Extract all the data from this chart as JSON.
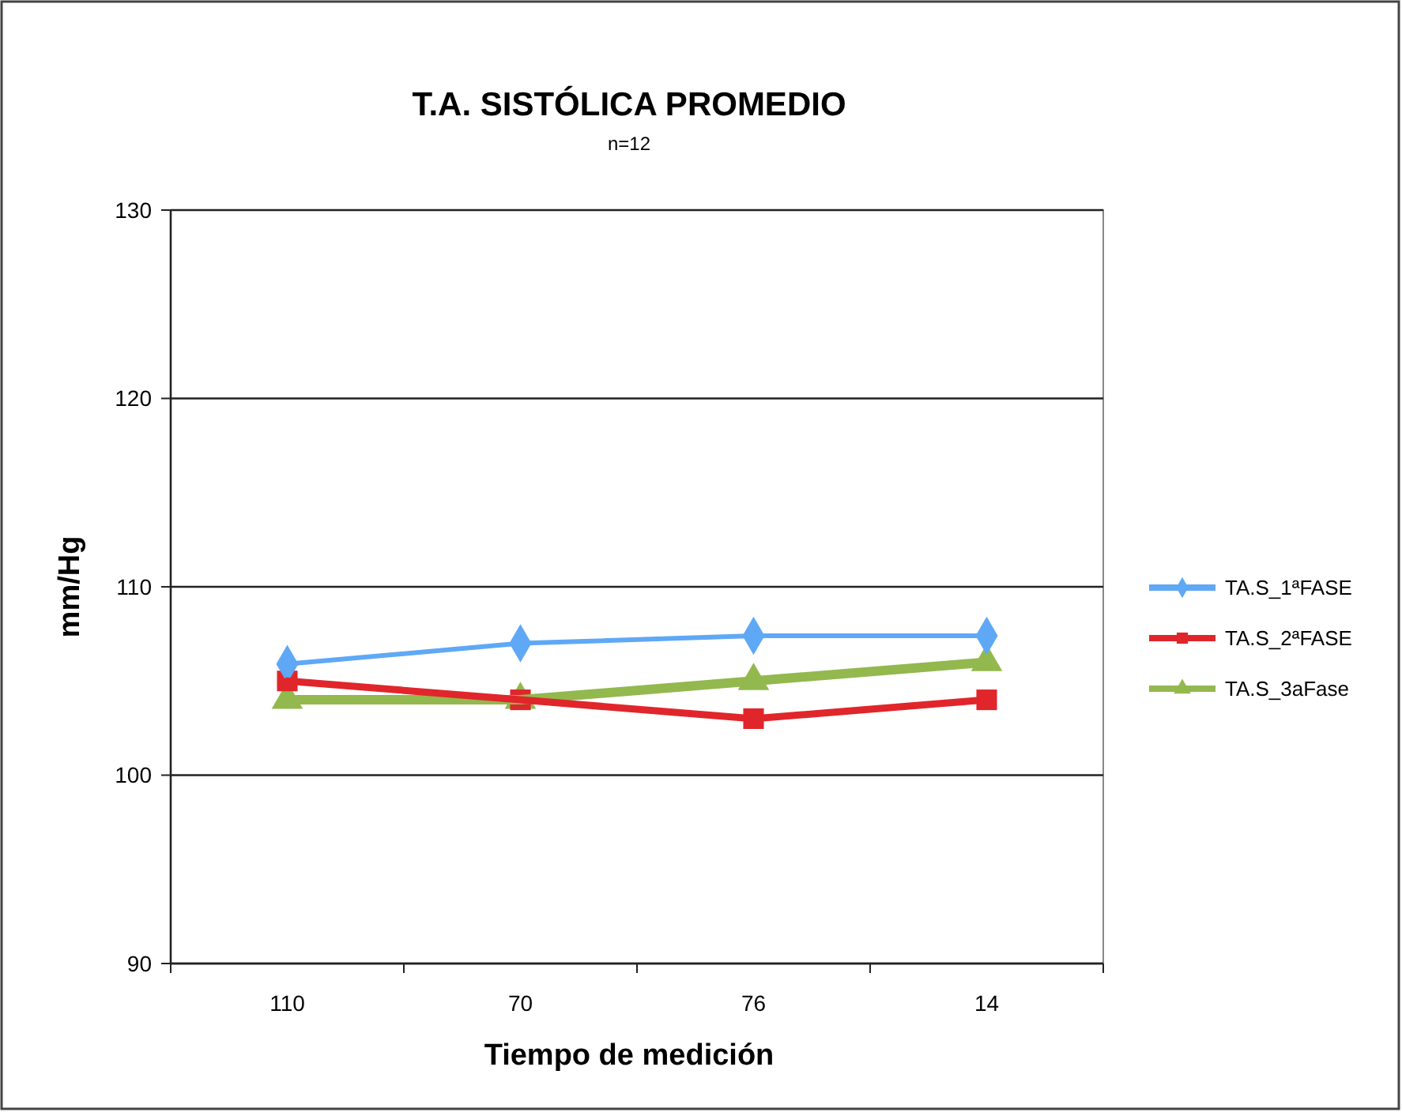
{
  "chart_data": {
    "type": "line",
    "title": "T.A. SISTÓLICA PROMEDIO",
    "subtitle": "n=12",
    "xlabel": "Tiempo de medición",
    "ylabel": "mm/Hg",
    "categories": [
      "110",
      "70",
      "76",
      "14"
    ],
    "series": [
      {
        "name": "TA.S_1ªFASE",
        "color": "#5fa8f5",
        "marker": "diamond",
        "values": [
          105.9,
          107,
          107.4,
          107.4
        ]
      },
      {
        "name": "TA.S_2ªFASE",
        "color": "#e0262b",
        "marker": "square",
        "values": [
          105,
          104,
          103,
          104
        ]
      },
      {
        "name": "TA.S_3aFase",
        "color": "#93b84e",
        "marker": "triangle",
        "values": [
          104,
          104,
          105,
          106
        ]
      }
    ],
    "ylim": [
      90,
      130
    ],
    "yticks": [
      90,
      100,
      110,
      120,
      130
    ],
    "grid": "y",
    "legend": "right"
  }
}
